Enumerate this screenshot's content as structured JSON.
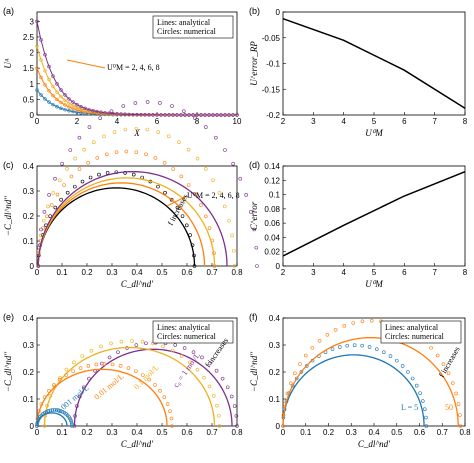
{
  "chart_data": [
    {
      "panel": "(a)",
      "type": "line",
      "xlabel": "X",
      "ylabel": "Uᴬ",
      "xlim": [
        0,
        10
      ],
      "ylim": [
        0,
        3.3
      ],
      "xticks": [
        "0",
        "2",
        "4",
        "6",
        "8",
        "10"
      ],
      "yticks": [
        "0",
        "0.5",
        "1",
        "1.5",
        "2",
        "2.5",
        "3"
      ],
      "legend": [
        "Lines: analytical",
        "Circles: numerical"
      ],
      "annotation": "U⁰M = 2, 4, 6, 8",
      "series": [
        {
          "color": "#1f77b4",
          "y0": 0.8,
          "decay": 1.1
        },
        {
          "color": "#ff7f0e",
          "y0": 1.5,
          "decay": 1.1
        },
        {
          "color": "#edb120",
          "y0": 2.2,
          "decay": 1.1
        },
        {
          "color": "#7e2f8e",
          "y0": 3.0,
          "decay": 1.1
        }
      ]
    },
    {
      "panel": "(b)",
      "type": "line",
      "xlabel": "U⁰M",
      "ylabel": "U^error_RP",
      "xlim": [
        2,
        8
      ],
      "ylim": [
        -0.2,
        0
      ],
      "xticks": [
        "2",
        "3",
        "4",
        "5",
        "6",
        "7",
        "8"
      ],
      "yticks": [
        "0",
        "-0.05",
        "-0.1",
        "-0.15",
        "-0.2"
      ],
      "x": [
        2,
        4,
        6,
        8
      ],
      "values": [
        -0.013,
        -0.055,
        -0.113,
        -0.187
      ]
    },
    {
      "panel": "(c)",
      "type": "scatter",
      "xlabel": "C_dl^nd'",
      "ylabel": "−C_dl^nd''",
      "xlim": [
        0,
        0.8
      ],
      "ylim": [
        0,
        0.4
      ],
      "xticks": [
        "0",
        "0.1",
        "0.2",
        "0.3",
        "0.4",
        "0.5",
        "0.6",
        "0.7",
        "0.8"
      ],
      "yticks": [
        "0",
        "0.1",
        "0.2",
        "0.3",
        "0.4"
      ],
      "annotation": "U⁰M = 2, 4, 6, 8",
      "arrow_label": "f increases",
      "series": [
        {
          "color": "#000000",
          "width": 0.63
        },
        {
          "color": "#ff7f0e",
          "width": 0.67
        },
        {
          "color": "#edb120",
          "width": 0.71
        },
        {
          "color": "#7e2f8e",
          "width": 0.76
        }
      ]
    },
    {
      "panel": "(d)",
      "type": "line",
      "xlabel": "U⁰M",
      "ylabel": "C^error",
      "xlim": [
        2,
        8
      ],
      "ylim": [
        0,
        0.14
      ],
      "xticks": [
        "2",
        "3",
        "4",
        "5",
        "6",
        "7",
        "8"
      ],
      "yticks": [
        "0",
        "0.02",
        "0.04",
        "0.06",
        "0.08",
        "0.1",
        "0.12",
        "0.14"
      ],
      "x": [
        2,
        4,
        6,
        8
      ],
      "values": [
        0.014,
        0.057,
        0.098,
        0.132
      ]
    },
    {
      "panel": "(e)",
      "type": "scatter",
      "xlabel": "C_dl^nd'",
      "ylabel": "−C_dl^nd''",
      "xlim": [
        0,
        0.8
      ],
      "ylim": [
        0,
        0.4
      ],
      "xticks": [
        "0",
        "0.1",
        "0.2",
        "0.3",
        "0.4",
        "0.5",
        "0.6",
        "0.7",
        "0.8"
      ],
      "yticks": [
        "0",
        "0.1",
        "0.2",
        "0.3",
        "0.4"
      ],
      "legend": [
        "Lines: analytical",
        "Circles: numerical"
      ],
      "arrow_label": "f increases",
      "series_labels": [
        "c₀ = 1 mol/L",
        "0.1 mol/L",
        "0.01 mol/L",
        "0.001 mol/L"
      ],
      "series": [
        {
          "color": "#7e2f8e",
          "x0": 0.15,
          "x1": 0.78,
          "ky": 0.95
        },
        {
          "color": "#edb120",
          "x0": 0.03,
          "x1": 0.71,
          "ky": 0.9
        },
        {
          "color": "#ff7f0e",
          "x0": 0.0,
          "x1": 0.52,
          "ky": 0.85
        },
        {
          "color": "#1f77b4",
          "x0": 0.0,
          "x1": 0.12,
          "ky": 0.85
        }
      ]
    },
    {
      "panel": "(f)",
      "type": "scatter",
      "xlabel": "C_dl^nd'",
      "ylabel": "−C_dl^nd''",
      "xlim": [
        0,
        0.8
      ],
      "ylim": [
        0,
        0.4
      ],
      "xticks": [
        "0",
        "0.1",
        "0.2",
        "0.3",
        "0.4",
        "0.5",
        "0.6",
        "0.7",
        "0.8"
      ],
      "yticks": [
        "0",
        "0.1",
        "0.2",
        "0.3",
        "0.4"
      ],
      "legend": [
        "Lines: analytical",
        "Circles: numerical"
      ],
      "arrow_label": "f increases",
      "series_labels": [
        "L = 5",
        "50"
      ],
      "series": [
        {
          "color": "#1f77b4",
          "x0": 0.0,
          "x1": 0.62
        },
        {
          "color": "#ff7f0e",
          "x0": 0.0,
          "x1": 0.77
        }
      ]
    }
  ]
}
